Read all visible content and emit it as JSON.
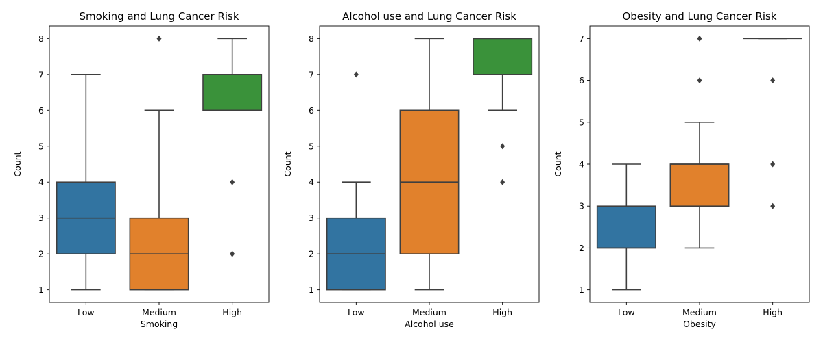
{
  "chart_data": [
    {
      "type": "boxplot",
      "title": "Smoking and Lung Cancer Risk",
      "xlabel": "Smoking",
      "ylabel": "Count",
      "categories": [
        "Low",
        "Medium",
        "High"
      ],
      "yticks": [
        1,
        2,
        3,
        4,
        5,
        6,
        7,
        8
      ],
      "ylim": [
        0.65,
        8.35
      ],
      "colors": [
        "#3274a1",
        "#e1812c",
        "#3a923a"
      ],
      "boxes": [
        {
          "category": "Low",
          "whisker_low": 1,
          "q1": 2,
          "median": 3,
          "q3": 4,
          "whisker_high": 7,
          "outliers": []
        },
        {
          "category": "Medium",
          "whisker_low": 1,
          "q1": 1,
          "median": 2,
          "q3": 3,
          "whisker_high": 6,
          "outliers": [
            8
          ]
        },
        {
          "category": "High",
          "whisker_low": 6,
          "q1": 6,
          "median": 7,
          "q3": 7,
          "whisker_high": 8,
          "outliers": [
            4,
            2
          ]
        }
      ]
    },
    {
      "type": "boxplot",
      "title": "Alcohol use and Lung Cancer Risk",
      "xlabel": "Alcohol use",
      "ylabel": "Count",
      "categories": [
        "Low",
        "Medium",
        "High"
      ],
      "yticks": [
        1,
        2,
        3,
        4,
        5,
        6,
        7,
        8
      ],
      "ylim": [
        0.65,
        8.35
      ],
      "colors": [
        "#3274a1",
        "#e1812c",
        "#3a923a"
      ],
      "boxes": [
        {
          "category": "Low",
          "whisker_low": 1,
          "q1": 1,
          "median": 2,
          "q3": 3,
          "whisker_high": 4,
          "outliers": [
            7
          ]
        },
        {
          "category": "Medium",
          "whisker_low": 1,
          "q1": 2,
          "median": 4,
          "q3": 6,
          "whisker_high": 8,
          "outliers": []
        },
        {
          "category": "High",
          "whisker_low": 6,
          "q1": 7,
          "median": 8,
          "q3": 8,
          "whisker_high": 8,
          "outliers": [
            5,
            4
          ]
        }
      ]
    },
    {
      "type": "boxplot",
      "title": "Obesity and Lung Cancer Risk",
      "xlabel": "Obesity",
      "ylabel": "Count",
      "categories": [
        "Low",
        "Medium",
        "High"
      ],
      "yticks": [
        1,
        2,
        3,
        4,
        5,
        6,
        7
      ],
      "ylim": [
        0.7,
        7.3
      ],
      "colors": [
        "#3274a1",
        "#e1812c",
        "#3a923a"
      ],
      "boxes": [
        {
          "category": "Low",
          "whisker_low": 1,
          "q1": 2,
          "median": 2,
          "q3": 3,
          "whisker_high": 4,
          "outliers": []
        },
        {
          "category": "Medium",
          "whisker_low": 2,
          "q1": 3,
          "median": 4,
          "q3": 4,
          "whisker_high": 5,
          "outliers": [
            7,
            6
          ]
        },
        {
          "category": "High",
          "whisker_low": 7,
          "q1": 7,
          "median": 7,
          "q3": 7,
          "whisker_high": 7,
          "outliers": [
            6,
            4,
            3
          ]
        }
      ]
    }
  ]
}
